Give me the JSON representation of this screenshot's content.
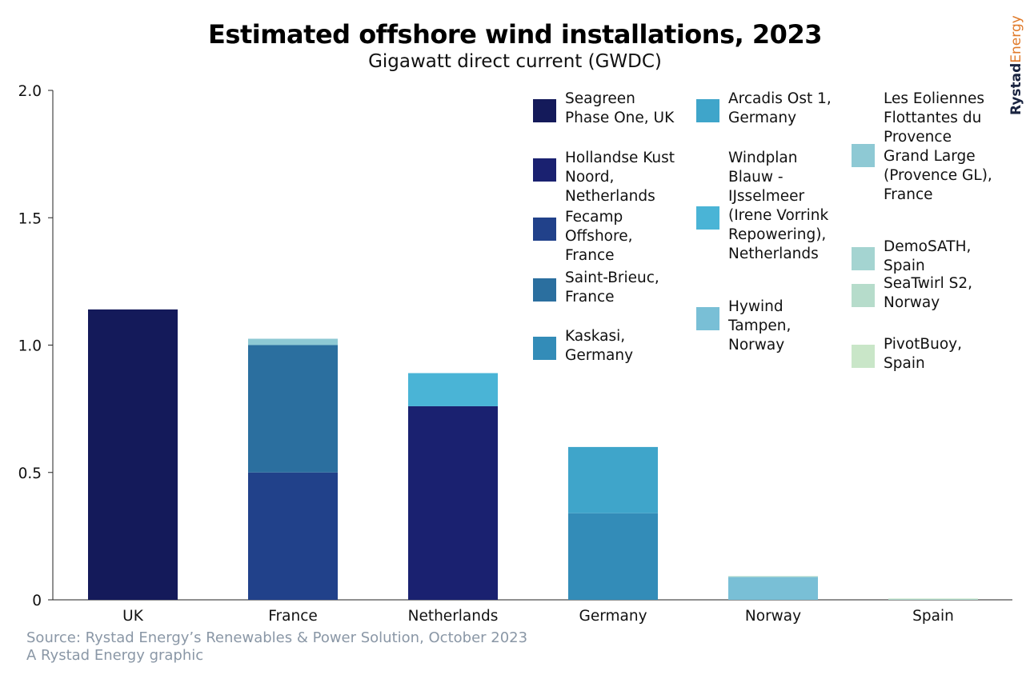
{
  "chart_data": {
    "type": "bar",
    "stacked": true,
    "title": "Estimated offshore wind installations, 2023",
    "subtitle": "Gigawatt direct current (GWDC)",
    "categories": [
      "UK",
      "France",
      "Netherlands",
      "Germany",
      "Norway",
      "Spain"
    ],
    "ylim": [
      0,
      2.0
    ],
    "yticks": [
      "0",
      "0.5",
      "1.0",
      "1.5",
      "2.0"
    ],
    "ytick_values": [
      0,
      0.5,
      1.0,
      1.5,
      2.0
    ],
    "grid": false,
    "legend_position": "top-right",
    "series": [
      {
        "name": "Seagreen\nPhase One, UK",
        "color": "#141a5a",
        "values": [
          1.14,
          0,
          0,
          0,
          0,
          0
        ]
      },
      {
        "name": "Hollandse Kust\nNoord,\nNetherlands",
        "color": "#1a2170",
        "values": [
          0,
          0,
          0.76,
          0,
          0,
          0
        ]
      },
      {
        "name": "Fecamp\nOffshore,\nFrance",
        "color": "#21418a",
        "values": [
          0,
          0.5,
          0,
          0,
          0,
          0
        ]
      },
      {
        "name": "Saint-Brieuc,\nFrance",
        "color": "#2b6f9f",
        "values": [
          0,
          0.5,
          0,
          0,
          0,
          0
        ]
      },
      {
        "name": "Kaskasi,\nGermany",
        "color": "#338cb8",
        "values": [
          0,
          0,
          0,
          0.34,
          0,
          0
        ]
      },
      {
        "name": "Arcadis Ost 1,\nGermany",
        "color": "#3fa5ca",
        "values": [
          0,
          0,
          0,
          0.26,
          0,
          0
        ]
      },
      {
        "name": "Windplan\nBlauw -\nIJsselmeer\n(Irene Vorrink\nRepowering),\nNetherlands",
        "color": "#4ab4d6",
        "values": [
          0,
          0,
          0.13,
          0,
          0,
          0
        ]
      },
      {
        "name": "Hywind\nTampen,\nNorway",
        "color": "#79bfd6",
        "values": [
          0,
          0,
          0,
          0,
          0.09,
          0
        ]
      },
      {
        "name": "Les Eoliennes\nFlottantes du\nProvence\nGrand Large\n(Provence GL),\nFrance",
        "color": "#8ec9d4",
        "values": [
          0,
          0.025,
          0,
          0,
          0,
          0
        ]
      },
      {
        "name": "DemoSATH,\nSpain",
        "color": "#a4d4d1",
        "values": [
          0,
          0,
          0,
          0,
          0,
          0.002
        ]
      },
      {
        "name": "SeaTwirl S2,\nNorway",
        "color": "#b6dccb",
        "values": [
          0,
          0,
          0,
          0,
          0.001,
          0
        ]
      },
      {
        "name": "PivotBuoy,\nSpain",
        "color": "#c9e6c8",
        "values": [
          0,
          0,
          0,
          0,
          0,
          0.001
        ]
      }
    ]
  },
  "footer": {
    "source": "Source: Rystad Energy’s Renewables & Power Solution, October 2023",
    "credit": "A Rystad Energy graphic"
  },
  "brand": {
    "name_part1": "Rystad",
    "name_part2": "Energy",
    "color_dark": "#1a2440",
    "color_accent": "#e07a2a"
  }
}
